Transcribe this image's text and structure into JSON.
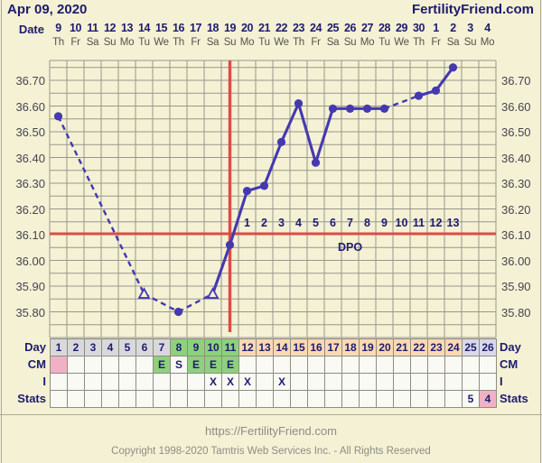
{
  "header": {
    "date": "Apr 09, 2020",
    "brand": "FertilityFriend.com"
  },
  "top_axis": {
    "label": "Date",
    "dates": [
      "9",
      "10",
      "11",
      "12",
      "13",
      "14",
      "15",
      "16",
      "17",
      "18",
      "19",
      "20",
      "21",
      "22",
      "23",
      "24",
      "25",
      "26",
      "27",
      "28",
      "29",
      "30",
      "1",
      "2",
      "3",
      "4"
    ],
    "weekdays": [
      "Th",
      "Fr",
      "Sa",
      "Su",
      "Mo",
      "Tu",
      "We",
      "Th",
      "Fr",
      "Sa",
      "Su",
      "Mo",
      "Tu",
      "We",
      "Th",
      "Fr",
      "Sa",
      "Su",
      "Mo",
      "Tu",
      "We",
      "Th",
      "Fr",
      "Sa",
      "Su",
      "Mo"
    ]
  },
  "chart_data": {
    "type": "line",
    "title": "Basal body temperature chart",
    "ylim": [
      35.7,
      36.78
    ],
    "y_ticks": [
      36.7,
      36.6,
      36.5,
      36.4,
      36.3,
      36.2,
      36.1,
      36.0,
      35.9,
      35.8
    ],
    "y_grid_step": 0.05,
    "days_total": 26,
    "series": [
      {
        "name": "temperature",
        "points": [
          {
            "day": 1,
            "temp": 36.56,
            "marker": "circle"
          },
          {
            "day": 6,
            "temp": 35.87,
            "marker": "triangle"
          },
          {
            "day": 8,
            "temp": 35.8,
            "marker": "circle"
          },
          {
            "day": 10,
            "temp": 35.87,
            "marker": "triangle"
          },
          {
            "day": 11,
            "temp": 36.06,
            "marker": "circle"
          },
          {
            "day": 12,
            "temp": 36.27,
            "marker": "circle"
          },
          {
            "day": 13,
            "temp": 36.29,
            "marker": "circle"
          },
          {
            "day": 14,
            "temp": 36.46,
            "marker": "circle"
          },
          {
            "day": 15,
            "temp": 36.61,
            "marker": "circle"
          },
          {
            "day": 16,
            "temp": 36.38,
            "marker": "circle"
          },
          {
            "day": 17,
            "temp": 36.59,
            "marker": "circle"
          },
          {
            "day": 18,
            "temp": 36.59,
            "marker": "circle"
          },
          {
            "day": 19,
            "temp": 36.59,
            "marker": "circle"
          },
          {
            "day": 20,
            "temp": 36.59,
            "marker": "circle"
          },
          {
            "day": 22,
            "temp": 36.64,
            "marker": "circle"
          },
          {
            "day": 23,
            "temp": 36.66,
            "marker": "circle"
          },
          {
            "day": 24,
            "temp": 36.75,
            "marker": "circle"
          }
        ]
      }
    ],
    "coverline_temp": 36.1,
    "ovulation_day": 11,
    "dpo": {
      "label": "DPO",
      "first_day": 12,
      "numbers": [
        "1",
        "2",
        "3",
        "4",
        "5",
        "6",
        "7",
        "8",
        "9",
        "10",
        "11",
        "12",
        "13"
      ]
    },
    "legend": "none",
    "grid": "on"
  },
  "table": {
    "left_labels": [
      "Day",
      "CM",
      "I",
      "Stats"
    ],
    "right_labels": [
      "Day",
      "CM",
      "I",
      "Stats"
    ],
    "days": [
      "1",
      "2",
      "3",
      "4",
      "5",
      "6",
      "7",
      "8",
      "9",
      "10",
      "11",
      "12",
      "13",
      "14",
      "15",
      "16",
      "17",
      "18",
      "19",
      "20",
      "21",
      "22",
      "23",
      "24",
      "25",
      "26"
    ],
    "day_phase_ranges": {
      "gray": [
        1,
        7
      ],
      "green": [
        8,
        11
      ],
      "peach": [
        12,
        24
      ],
      "lavender": [
        25,
        26
      ]
    },
    "cm_cells": [
      {
        "day": 1,
        "text": "",
        "bg": "pink"
      },
      {
        "day": 7,
        "text": "E",
        "bg": "green"
      },
      {
        "day": 8,
        "text": "S",
        "bg": "white"
      },
      {
        "day": 9,
        "text": "E",
        "bg": "green"
      },
      {
        "day": 10,
        "text": "E",
        "bg": "green"
      },
      {
        "day": 11,
        "text": "E",
        "bg": "green"
      }
    ],
    "i_cells": [
      {
        "day": 10,
        "text": "X"
      },
      {
        "day": 11,
        "text": "X"
      },
      {
        "day": 12,
        "text": "X"
      },
      {
        "day": 14,
        "text": "X"
      }
    ],
    "stats_cells": [
      {
        "day": 25,
        "text": "5",
        "bg": "white"
      },
      {
        "day": 26,
        "text": "4",
        "bg": "pink"
      }
    ]
  },
  "footer": {
    "url": "https://FertilityFriend.com",
    "copyright": "Copyright 1998-2020 Tamtris Web Services Inc. - All Rights Reserved"
  },
  "colors": {
    "background": "#f5f1d4",
    "navy_text": "#1d1c6e",
    "line_blue": "#4439b0",
    "red": "#dc4b47",
    "grid": "#97978b",
    "cell_gray": "#d9d9dc",
    "cell_green": "#8ed17d",
    "cell_peach": "#fbd9b3",
    "cell_lavender": "#d9d9e9",
    "cell_pink": "#f1b1c5",
    "cell_white": "#fafaf5"
  }
}
